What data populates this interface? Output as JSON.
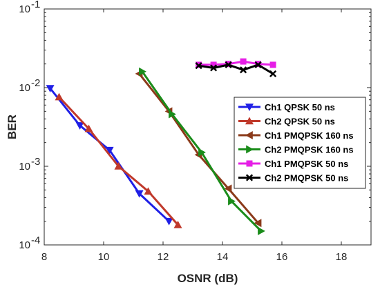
{
  "chart_data": {
    "type": "line",
    "xlabel": "OSNR (dB)",
    "ylabel": "BER",
    "xlim": [
      8,
      19
    ],
    "ylim": [
      0.0001,
      0.1
    ],
    "y_scale": "log",
    "x_ticks": [
      8,
      10,
      12,
      14,
      16,
      18
    ],
    "y_ticks": [
      {
        "value": 0.0001,
        "base": "10",
        "exp": "-4"
      },
      {
        "value": 0.001,
        "base": "10",
        "exp": "-3"
      },
      {
        "value": 0.01,
        "base": "10",
        "exp": "-2"
      },
      {
        "value": 0.1,
        "base": "10",
        "exp": "-1"
      }
    ],
    "grid": false,
    "legend_position": "center-right",
    "series": [
      {
        "name": "Ch1 QPSK 50 ns",
        "color": "#1f1fe6",
        "marker": "triangle-down",
        "x": [
          8.2,
          9.2,
          10.2,
          11.2,
          12.2
        ],
        "y": [
          0.0098,
          0.0033,
          0.0016,
          0.00045,
          0.0002
        ]
      },
      {
        "name": "Ch2 QPSK 50 ns",
        "color": "#c0392b",
        "marker": "triangle-up",
        "x": [
          8.5,
          9.5,
          10.5,
          11.5,
          12.5
        ],
        "y": [
          0.0076,
          0.003,
          0.001,
          0.00048,
          0.00018
        ]
      },
      {
        "name": "Ch1 PMQPSK 160 ns",
        "color": "#8b3a1a",
        "marker": "triangle-left",
        "x": [
          11.2,
          12.2,
          13.2,
          14.2,
          15.2
        ],
        "y": [
          0.015,
          0.005,
          0.0014,
          0.00052,
          0.00019
        ]
      },
      {
        "name": "Ch2 PMQPSK 160 ns",
        "color": "#1a8c1a",
        "marker": "triangle-right",
        "x": [
          11.3,
          12.3,
          13.3,
          14.3,
          15.3
        ],
        "y": [
          0.016,
          0.0046,
          0.0015,
          0.00036,
          0.00015
        ]
      },
      {
        "name": "Ch1 PMQPSK 50 ns",
        "color": "#e61ee6",
        "marker": "square",
        "x": [
          13.2,
          13.7,
          14.2,
          14.7,
          15.2,
          15.7
        ],
        "y": [
          0.0195,
          0.0195,
          0.02,
          0.0215,
          0.02,
          0.0195
        ]
      },
      {
        "name": "Ch2 PMQPSK 50 ns",
        "color": "#000000",
        "marker": "x",
        "x": [
          13.2,
          13.7,
          14.2,
          14.7,
          15.2,
          15.7
        ],
        "y": [
          0.019,
          0.0178,
          0.0195,
          0.0168,
          0.0195,
          0.015
        ]
      }
    ]
  }
}
